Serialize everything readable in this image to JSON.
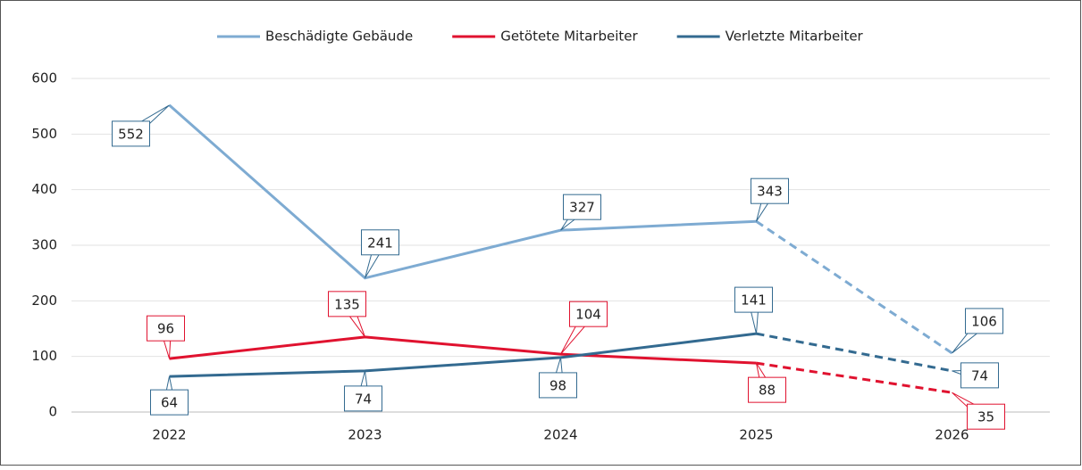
{
  "chart_data": {
    "type": "line",
    "categories": [
      "2022",
      "2023",
      "2024",
      "2025",
      "2026"
    ],
    "series": [
      {
        "name": "Beschädigte Gebäude",
        "color": "#7eabd2",
        "values": [
          552,
          241,
          327,
          343,
          106
        ],
        "dash_from": 3
      },
      {
        "name": "Getötete Mitarbeiter",
        "color": "#e0122f",
        "values": [
          96,
          135,
          104,
          88,
          35
        ],
        "dash_from": 3
      },
      {
        "name": "Verletzte Mitarbeiter",
        "color": "#336a90",
        "values": [
          64,
          74,
          98,
          141,
          74
        ],
        "dash_from": 3
      }
    ],
    "ylim": [
      0,
      600
    ],
    "yticks": [
      0,
      100,
      200,
      300,
      400,
      500,
      600
    ],
    "grid": true,
    "legend": "top"
  }
}
